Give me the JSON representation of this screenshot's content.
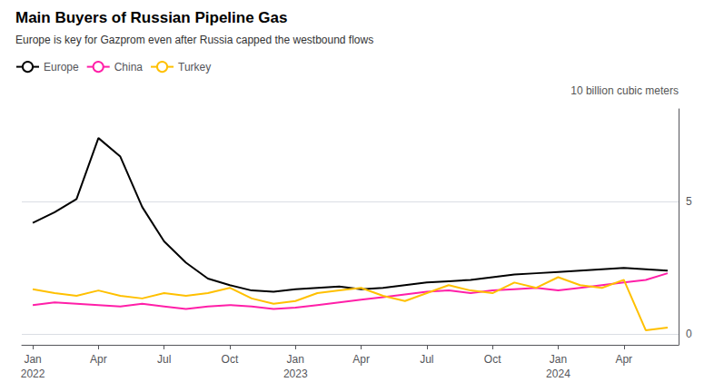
{
  "chart_data": {
    "type": "line",
    "title": "Main Buyers of Russian Pipeline Gas",
    "subtitle": "Europe is key for Gazprom even after Russia capped the westbound flows",
    "ylabel": "10 billion cubic meters",
    "categories": [
      "Jan\n2022",
      null,
      null,
      "Apr",
      null,
      null,
      "Jul",
      null,
      null,
      "Oct",
      null,
      null,
      "Jan\n2023",
      null,
      null,
      "Apr",
      null,
      null,
      "Jul",
      null,
      null,
      "Oct",
      null,
      null,
      "Jan\n2024",
      null,
      null,
      "Apr",
      null,
      null
    ],
    "series": [
      {
        "name": "Europe",
        "color": "#000000",
        "values": [
          4.2,
          4.6,
          5.1,
          7.4,
          6.7,
          4.8,
          3.5,
          2.7,
          2.1,
          1.85,
          1.65,
          1.6,
          1.7,
          1.75,
          1.8,
          1.7,
          1.75,
          1.85,
          1.95,
          2.0,
          2.05,
          2.15,
          2.25,
          2.3,
          2.35,
          2.4,
          2.45,
          2.5,
          2.45,
          2.4
        ]
      },
      {
        "name": "China",
        "color": "#FF1FA8",
        "values": [
          1.1,
          1.2,
          1.15,
          1.1,
          1.05,
          1.15,
          1.05,
          0.95,
          1.05,
          1.1,
          1.05,
          0.95,
          1.0,
          1.1,
          1.2,
          1.3,
          1.4,
          1.5,
          1.6,
          1.65,
          1.55,
          1.65,
          1.7,
          1.75,
          1.65,
          1.75,
          1.85,
          1.95,
          2.05,
          2.3
        ]
      },
      {
        "name": "Turkey",
        "color": "#FFC000",
        "values": [
          1.7,
          1.55,
          1.45,
          1.65,
          1.45,
          1.35,
          1.55,
          1.45,
          1.55,
          1.75,
          1.35,
          1.15,
          1.25,
          1.55,
          1.65,
          1.75,
          1.45,
          1.25,
          1.55,
          1.85,
          1.65,
          1.55,
          1.95,
          1.75,
          2.15,
          1.85,
          1.75,
          2.05,
          0.15,
          0.25
        ]
      }
    ],
    "ylim": [
      -0.4,
      8.5
    ],
    "yticks": [
      0,
      5
    ],
    "grid": true,
    "legend": "top-left"
  }
}
